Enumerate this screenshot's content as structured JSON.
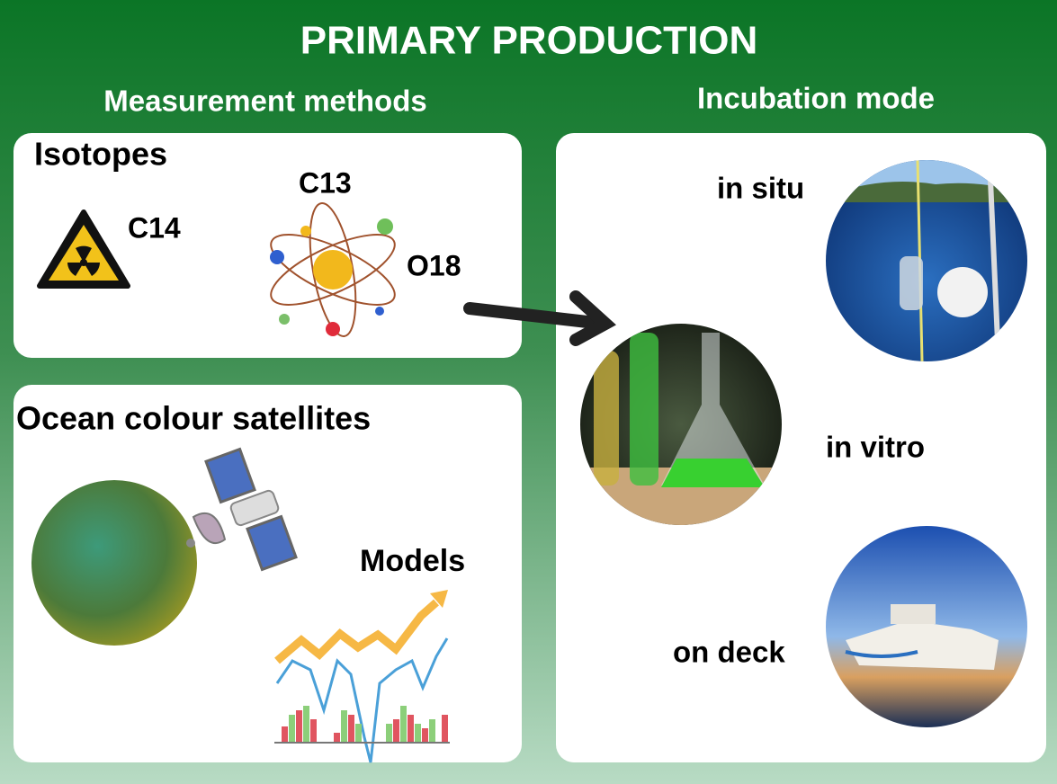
{
  "title": "PRIMARY PRODUCTION",
  "left": {
    "heading": "Measurement methods",
    "isotopes": {
      "title": "Isotopes",
      "labels": [
        "C14",
        "C13",
        "O18"
      ]
    },
    "satellites": {
      "title": "Ocean colour satellites",
      "models": "Models"
    }
  },
  "right": {
    "heading": "Incubation mode",
    "modes": [
      "in situ",
      "in vitro",
      "on deck"
    ]
  }
}
